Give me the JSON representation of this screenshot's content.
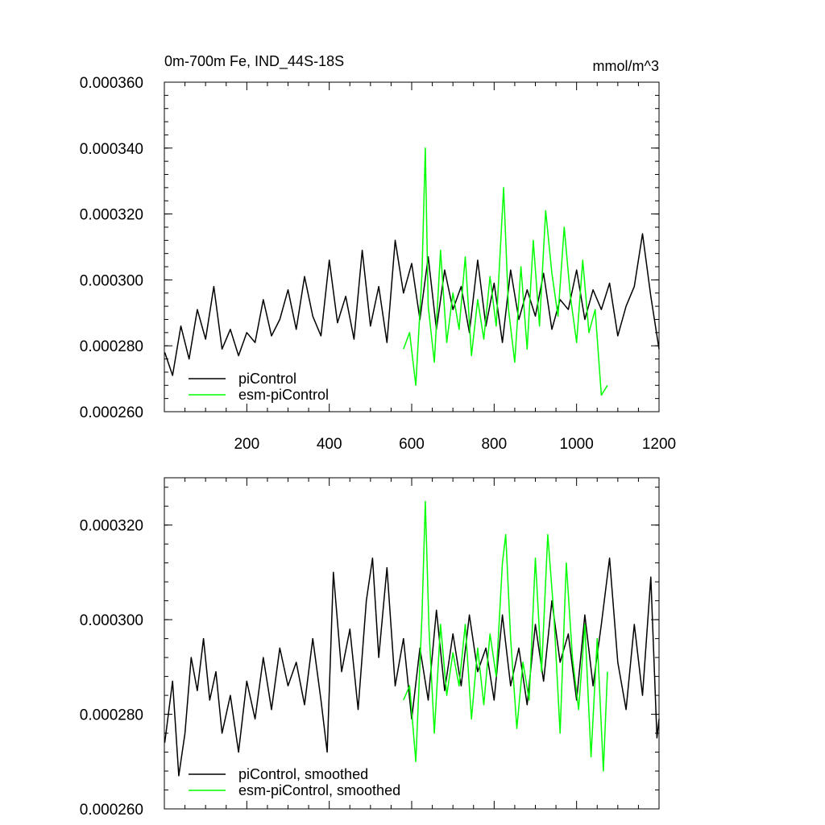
{
  "chart_data": [
    {
      "type": "line",
      "title": "0m-700m Fe, IND_44S-18S",
      "units": "mmol/m^3",
      "xlabel": "",
      "ylabel": "",
      "xlim": [
        0,
        1200
      ],
      "ylim": [
        0.00026,
        0.00036
      ],
      "x_ticks": [
        200,
        400,
        600,
        800,
        1000,
        1200
      ],
      "x_tick_labels": [
        "200",
        "400",
        "600",
        "800",
        "1000",
        "1200"
      ],
      "y_ticks": [
        0.00026,
        0.00028,
        0.0003,
        0.00032,
        0.00034,
        0.00036
      ],
      "y_tick_labels": [
        "0.000260",
        "0.000280",
        "0.000300",
        "0.000320",
        "0.000340",
        "0.000360"
      ],
      "legend": [
        "piControl",
        "esm-piControl"
      ],
      "legend_position": "bottom-left",
      "series": [
        {
          "name": "piControl",
          "color": "#000000",
          "x": [
            1,
            20,
            40,
            60,
            80,
            100,
            120,
            140,
            160,
            180,
            200,
            220,
            240,
            260,
            280,
            300,
            320,
            340,
            360,
            380,
            400,
            420,
            440,
            460,
            480,
            500,
            520,
            540,
            560,
            580,
            600,
            620,
            640,
            660,
            680,
            700,
            720,
            740,
            760,
            780,
            800,
            820,
            840,
            860,
            880,
            900,
            920,
            940,
            960,
            980,
            1000,
            1020,
            1040,
            1060,
            1080,
            1100,
            1120,
            1140,
            1160,
            1180,
            1200
          ],
          "values": [
            0.000278,
            0.000271,
            0.000286,
            0.000276,
            0.000291,
            0.000282,
            0.000298,
            0.000279,
            0.000285,
            0.000277,
            0.000284,
            0.000281,
            0.000294,
            0.000283,
            0.000288,
            0.000297,
            0.000285,
            0.000301,
            0.000289,
            0.000283,
            0.000306,
            0.000287,
            0.000295,
            0.000282,
            0.000309,
            0.000286,
            0.000298,
            0.000281,
            0.000312,
            0.000296,
            0.000305,
            0.000288,
            0.000307,
            0.000285,
            0.000303,
            0.000291,
            0.000298,
            0.000284,
            0.000306,
            0.000286,
            0.000299,
            0.000281,
            0.000303,
            0.000288,
            0.000297,
            0.000289,
            0.000302,
            0.000285,
            0.000294,
            0.000291,
            0.000303,
            0.000288,
            0.000297,
            0.000291,
            0.000299,
            0.000283,
            0.000292,
            0.000298,
            0.000314,
            0.000295,
            0.000279
          ]
        },
        {
          "name": "esm-piControl",
          "color": "#00ff00",
          "x": [
            580,
            595,
            610,
            625,
            633,
            640,
            655,
            670,
            685,
            700,
            715,
            730,
            745,
            760,
            775,
            790,
            805,
            823,
            835,
            850,
            865,
            880,
            895,
            910,
            925,
            940,
            955,
            970,
            985,
            1000,
            1015,
            1030,
            1045,
            1060,
            1075
          ],
          "values": [
            0.000279,
            0.000284,
            0.000268,
            0.000302,
            0.00034,
            0.000292,
            0.000275,
            0.000309,
            0.000281,
            0.000296,
            0.000285,
            0.000307,
            0.000277,
            0.000294,
            0.000282,
            0.000301,
            0.000286,
            0.000328,
            0.000291,
            0.000275,
            0.000304,
            0.000279,
            0.000312,
            0.000286,
            0.000321,
            0.000302,
            0.000289,
            0.000316,
            0.000295,
            0.000281,
            0.000306,
            0.000284,
            0.000291,
            0.000265,
            0.000268
          ]
        }
      ]
    },
    {
      "type": "line",
      "title": "",
      "xlabel": "",
      "ylabel": "",
      "xlim": [
        0,
        1200
      ],
      "ylim": [
        0.00026,
        0.00033
      ],
      "x_ticks": [
        200,
        400,
        600,
        800,
        1000,
        1200
      ],
      "y_ticks": [
        0.00026,
        0.00028,
        0.0003,
        0.00032
      ],
      "y_tick_labels": [
        "0.000260",
        "0.000280",
        "0.000300",
        "0.000320"
      ],
      "legend": [
        "piControl, smoothed",
        "esm-piControl, smoothed"
      ],
      "legend_position": "bottom-left",
      "series": [
        {
          "name": "piControl, smoothed",
          "color": "#000000",
          "x": [
            1,
            20,
            35,
            50,
            65,
            80,
            95,
            110,
            125,
            140,
            160,
            180,
            200,
            220,
            240,
            260,
            280,
            300,
            320,
            340,
            360,
            380,
            395,
            410,
            430,
            450,
            470,
            490,
            505,
            520,
            540,
            560,
            580,
            600,
            620,
            640,
            660,
            680,
            700,
            720,
            740,
            760,
            780,
            800,
            820,
            840,
            860,
            880,
            900,
            920,
            940,
            960,
            980,
            1000,
            1020,
            1040,
            1060,
            1080,
            1100,
            1120,
            1140,
            1160,
            1180,
            1195,
            1200
          ],
          "values": [
            0.000274,
            0.000287,
            0.000267,
            0.000276,
            0.000292,
            0.000285,
            0.000296,
            0.000283,
            0.000289,
            0.000276,
            0.000284,
            0.000272,
            0.000287,
            0.000279,
            0.000292,
            0.000281,
            0.000294,
            0.000286,
            0.000291,
            0.000282,
            0.000296,
            0.000283,
            0.000272,
            0.00031,
            0.000289,
            0.000298,
            0.000281,
            0.000304,
            0.000313,
            0.000292,
            0.000311,
            0.000286,
            0.000296,
            0.000279,
            0.000294,
            0.000283,
            0.000302,
            0.000285,
            0.000297,
            0.000286,
            0.000301,
            0.000289,
            0.000294,
            0.000283,
            0.000301,
            0.000286,
            0.000294,
            0.000282,
            0.000299,
            0.000287,
            0.000304,
            0.000291,
            0.000297,
            0.000283,
            0.000301,
            0.000286,
            0.000299,
            0.000313,
            0.000291,
            0.000281,
            0.000299,
            0.000284,
            0.000309,
            0.000275,
            0.000279
          ]
        },
        {
          "name": "esm-piControl, smoothed",
          "color": "#00ff00",
          "x": [
            580,
            595,
            610,
            625,
            633,
            642,
            655,
            670,
            685,
            700,
            715,
            730,
            745,
            760,
            775,
            790,
            805,
            820,
            828,
            840,
            855,
            870,
            885,
            900,
            915,
            930,
            945,
            960,
            975,
            990,
            1005,
            1020,
            1035,
            1050,
            1065,
            1075
          ],
          "values": [
            0.000283,
            0.000286,
            0.00027,
            0.000301,
            0.000325,
            0.000298,
            0.000276,
            0.000299,
            0.000284,
            0.000293,
            0.000286,
            0.000299,
            0.000279,
            0.000294,
            0.000282,
            0.000297,
            0.000288,
            0.000312,
            0.000318,
            0.000296,
            0.000277,
            0.000291,
            0.000283,
            0.000313,
            0.000289,
            0.000318,
            0.000301,
            0.000276,
            0.000312,
            0.000292,
            0.000281,
            0.000299,
            0.000271,
            0.000296,
            0.000268,
            0.000289
          ]
        }
      ]
    }
  ]
}
